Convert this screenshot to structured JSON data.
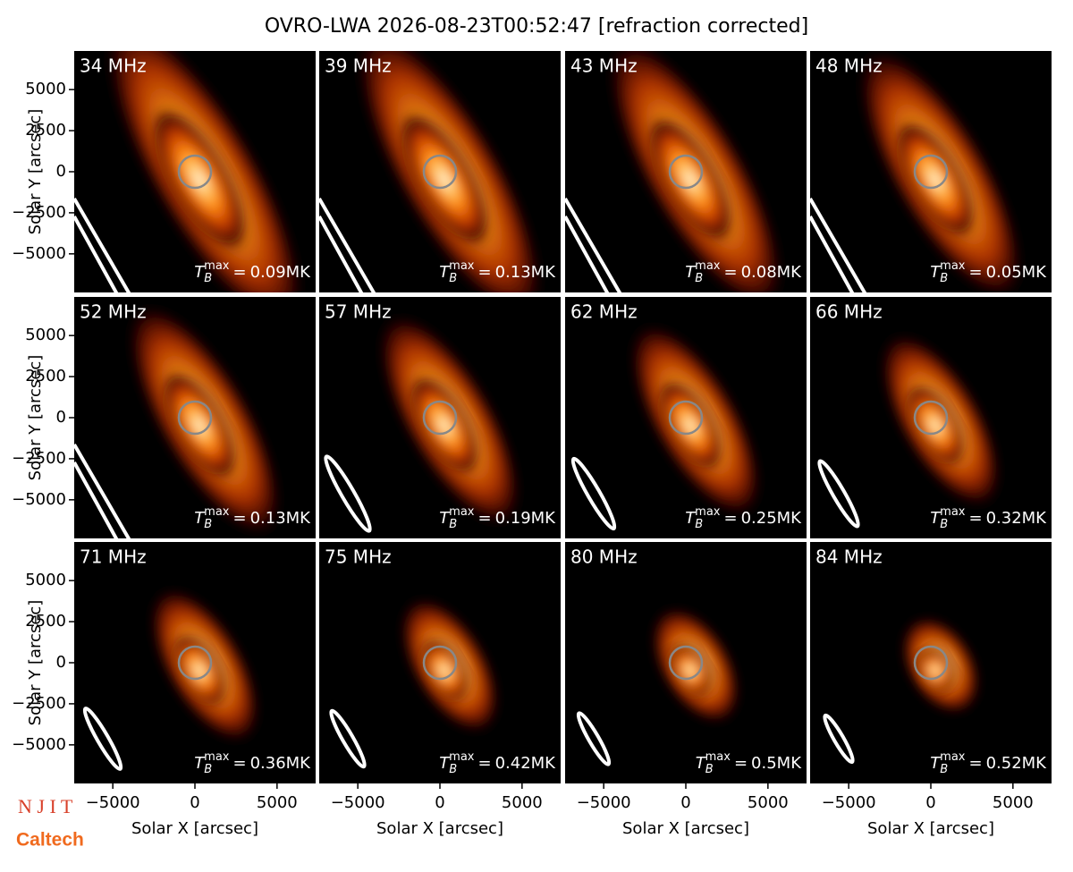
{
  "title": "OVRO-LWA 2026-08-23T00:52:47 [refraction corrected]",
  "x_label": "Solar X [arcsec]",
  "y_label": "Solar Y [arcsec]",
  "xlim": [
    -7350,
    7350
  ],
  "ylim": [
    -7350,
    7350
  ],
  "xticks": [
    {
      "value": -5000,
      "label": "−5000"
    },
    0,
    5000
  ],
  "yticks": [
    5000,
    2500,
    0,
    {
      "value": -2500,
      "label": "−2500"
    },
    {
      "value": -5000,
      "label": "−5000"
    }
  ],
  "tmax_symbol": {
    "base": "T",
    "sub": "B",
    "sup": "max",
    "eq": "="
  },
  "logos": [
    "N J I T",
    "Caltech"
  ],
  "chart_data": [
    {
      "type": "image",
      "label": "34 MHz",
      "tmax": "0.09MK"
    },
    {
      "type": "image",
      "label": "39 MHz",
      "tmax": "0.13MK"
    },
    {
      "type": "image",
      "label": "43 MHz",
      "tmax": "0.08MK"
    },
    {
      "type": "image",
      "label": "48 MHz",
      "tmax": "0.05MK"
    },
    {
      "type": "image",
      "label": "52 MHz",
      "tmax": "0.13MK"
    },
    {
      "type": "image",
      "label": "57 MHz",
      "tmax": "0.19MK"
    },
    {
      "type": "image",
      "label": "62 MHz",
      "tmax": "0.25MK"
    },
    {
      "type": "image",
      "label": "66 MHz",
      "tmax": "0.32MK"
    },
    {
      "type": "image",
      "label": "71 MHz",
      "tmax": "0.36MK"
    },
    {
      "type": "image",
      "label": "75 MHz",
      "tmax": "0.42MK"
    },
    {
      "type": "image",
      "label": "80 MHz",
      "tmax": "0.5MK"
    },
    {
      "type": "image",
      "label": "84 MHz",
      "tmax": "0.52MK"
    }
  ]
}
